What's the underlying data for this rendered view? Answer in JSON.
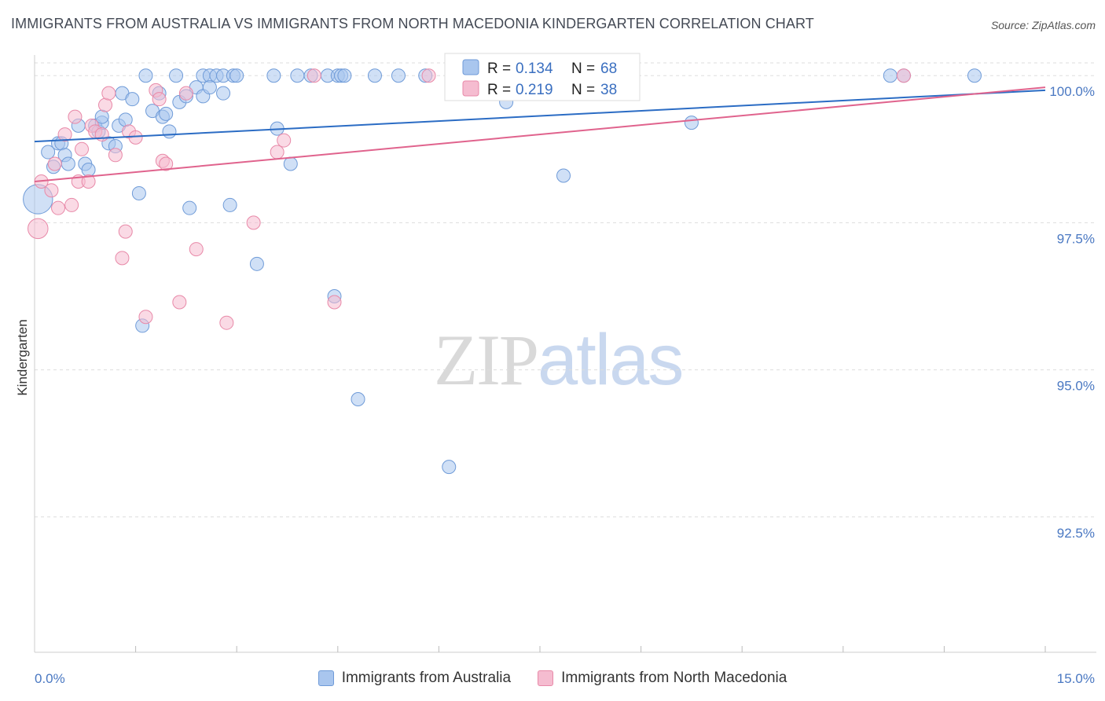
{
  "header": {
    "title": "IMMIGRANTS FROM AUSTRALIA VS IMMIGRANTS FROM NORTH MACEDONIA KINDERGARTEN CORRELATION CHART",
    "source": "Source: ZipAtlas.com"
  },
  "watermark": {
    "zip": "ZIP",
    "atlas": "atlas"
  },
  "colors": {
    "blue_fill": "#a9c6ee",
    "blue_stroke": "#6f9bd8",
    "blue_line": "#2b6cc4",
    "pink_fill": "#f5bcd0",
    "pink_stroke": "#e889a8",
    "pink_line": "#e0638d",
    "grid": "#dddddd",
    "axis_label": "#4a78c2"
  },
  "legend": {
    "rows": [
      {
        "r_label": "R = ",
        "r_value": "0.134",
        "n_label": "N = ",
        "n_value": "68"
      },
      {
        "r_label": "R = ",
        "r_value": "0.219",
        "n_label": "N = ",
        "n_value": "38"
      }
    ]
  },
  "chart_data": {
    "type": "scatter",
    "title": "IMMIGRANTS FROM AUSTRALIA VS IMMIGRANTS FROM NORTH MACEDONIA KINDERGARTEN CORRELATION CHART",
    "xlabel": "",
    "ylabel": "Kindergarten",
    "xlim": [
      0,
      15
    ],
    "ylim": [
      90.2,
      100.35
    ],
    "x_tick_labels": [
      "0.0%",
      "15.0%"
    ],
    "y_ticks": [
      {
        "value": 100.0,
        "label": "100.0%"
      },
      {
        "value": 97.5,
        "label": "97.5%"
      },
      {
        "value": 95.0,
        "label": "95.0%"
      },
      {
        "value": 92.5,
        "label": "92.5%"
      }
    ],
    "grid": true,
    "legend_position": "top-center",
    "series": [
      {
        "name": "Immigrants from Australia",
        "color": "#a9c6ee",
        "trend": {
          "x": [
            0,
            15
          ],
          "y": [
            98.88,
            99.75
          ]
        },
        "points": [
          [
            0.05,
            97.9,
            2.2
          ],
          [
            0.2,
            98.7,
            1
          ],
          [
            0.28,
            98.45,
            1
          ],
          [
            0.35,
            98.85,
            1
          ],
          [
            0.4,
            98.85,
            1
          ],
          [
            0.45,
            98.65,
            1
          ],
          [
            0.5,
            98.5,
            1
          ],
          [
            0.65,
            99.15,
            1
          ],
          [
            0.75,
            98.5,
            1
          ],
          [
            0.8,
            98.4,
            1
          ],
          [
            0.9,
            99.15,
            1
          ],
          [
            0.95,
            99.05,
            1
          ],
          [
            1.0,
            99.2,
            1
          ],
          [
            1.0,
            99.3,
            1
          ],
          [
            1.1,
            98.85,
            1
          ],
          [
            1.2,
            98.8,
            1
          ],
          [
            1.25,
            99.15,
            1
          ],
          [
            1.3,
            99.7,
            1
          ],
          [
            1.35,
            99.25,
            1
          ],
          [
            1.45,
            99.6,
            1
          ],
          [
            1.55,
            98.0,
            1
          ],
          [
            1.6,
            95.75,
            1
          ],
          [
            1.65,
            100.0,
            1
          ],
          [
            1.75,
            99.4,
            1
          ],
          [
            1.85,
            99.7,
            1
          ],
          [
            1.9,
            99.3,
            1
          ],
          [
            1.95,
            99.35,
            1
          ],
          [
            2.0,
            99.05,
            1
          ],
          [
            2.1,
            100.0,
            1
          ],
          [
            2.15,
            99.55,
            1
          ],
          [
            2.25,
            99.65,
            1
          ],
          [
            2.3,
            97.75,
            1
          ],
          [
            2.4,
            99.8,
            1
          ],
          [
            2.5,
            100.0,
            1
          ],
          [
            2.5,
            99.65,
            1
          ],
          [
            2.6,
            100.0,
            1
          ],
          [
            2.6,
            99.8,
            1
          ],
          [
            2.7,
            100.0,
            1
          ],
          [
            2.8,
            100.0,
            1
          ],
          [
            2.8,
            99.7,
            1
          ],
          [
            2.9,
            97.8,
            1
          ],
          [
            2.95,
            100.0,
            1
          ],
          [
            3.0,
            100.0,
            1
          ],
          [
            3.3,
            96.8,
            1
          ],
          [
            3.55,
            100.0,
            1
          ],
          [
            3.6,
            99.1,
            1
          ],
          [
            3.8,
            98.5,
            1
          ],
          [
            3.9,
            100.0,
            1
          ],
          [
            4.1,
            100.0,
            1
          ],
          [
            4.35,
            100.0,
            1
          ],
          [
            4.45,
            96.25,
            1
          ],
          [
            4.5,
            100.0,
            1
          ],
          [
            4.55,
            100.0,
            1
          ],
          [
            4.6,
            100.0,
            1
          ],
          [
            4.8,
            94.5,
            1
          ],
          [
            5.05,
            100.0,
            1
          ],
          [
            5.4,
            100.0,
            1
          ],
          [
            5.8,
            100.0,
            1
          ],
          [
            6.15,
            93.35,
            1
          ],
          [
            6.2,
            100.0,
            1
          ],
          [
            7.0,
            99.55,
            1
          ],
          [
            7.85,
            98.3,
            1
          ],
          [
            9.75,
            99.2,
            1
          ],
          [
            12.7,
            100.0,
            1
          ],
          [
            12.9,
            100.0,
            1
          ],
          [
            13.95,
            100.0,
            1
          ]
        ]
      },
      {
        "name": "Immigrants from North Macedonia",
        "color": "#f5bcd0",
        "trend": {
          "x": [
            0,
            15
          ],
          "y": [
            98.2,
            99.8
          ]
        },
        "points": [
          [
            0.05,
            97.4,
            1.5
          ],
          [
            0.1,
            98.2,
            1
          ],
          [
            0.25,
            98.05,
            1
          ],
          [
            0.3,
            98.5,
            1
          ],
          [
            0.35,
            97.75,
            1
          ],
          [
            0.45,
            99.0,
            1
          ],
          [
            0.55,
            97.8,
            1
          ],
          [
            0.6,
            99.3,
            1
          ],
          [
            0.65,
            98.2,
            1
          ],
          [
            0.7,
            98.75,
            1
          ],
          [
            0.8,
            98.2,
            1
          ],
          [
            0.85,
            99.15,
            1
          ],
          [
            0.9,
            99.05,
            1
          ],
          [
            1.0,
            99.0,
            1
          ],
          [
            1.05,
            99.5,
            1
          ],
          [
            1.1,
            99.7,
            1
          ],
          [
            1.2,
            98.65,
            1
          ],
          [
            1.3,
            96.9,
            1
          ],
          [
            1.35,
            97.35,
            1
          ],
          [
            1.4,
            99.05,
            1
          ],
          [
            1.5,
            98.95,
            1
          ],
          [
            1.65,
            95.9,
            1
          ],
          [
            1.8,
            99.75,
            1
          ],
          [
            1.85,
            99.6,
            1
          ],
          [
            1.9,
            98.55,
            1
          ],
          [
            1.95,
            98.5,
            1
          ],
          [
            2.15,
            96.15,
            1
          ],
          [
            2.25,
            99.7,
            1
          ],
          [
            2.4,
            97.05,
            1
          ],
          [
            2.85,
            95.8,
            1
          ],
          [
            3.25,
            97.5,
            1
          ],
          [
            3.6,
            98.7,
            1
          ],
          [
            3.7,
            98.9,
            1
          ],
          [
            4.15,
            100.0,
            1
          ],
          [
            4.45,
            96.15,
            1
          ],
          [
            5.85,
            100.0,
            1
          ],
          [
            8.6,
            100.0,
            1
          ],
          [
            12.9,
            100.0,
            1
          ]
        ]
      }
    ]
  }
}
